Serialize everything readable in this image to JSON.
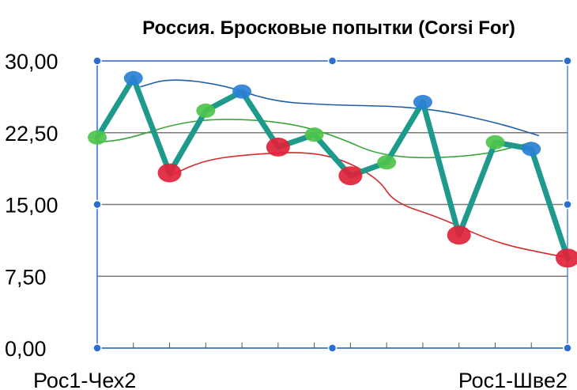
{
  "chart_data": {
    "type": "line",
    "title": "Россия. Бросковые попытки (Corsi For)",
    "xlabel": "",
    "ylabel": "",
    "ylim": [
      0,
      30
    ],
    "y_ticks": [
      "0,00",
      "7,50",
      "15,00",
      "22,50",
      "30,00"
    ],
    "y_tick_values": [
      0,
      7.5,
      15,
      22.5,
      30
    ],
    "x_labels_shown": [
      "Рос1-Чех2",
      "Рос1-Шве2"
    ],
    "grid": "horizontal",
    "legend": "none",
    "colors": {
      "main_line": "#1e9a8c",
      "point_green": "#4cc44c",
      "point_blue": "#2a7fd6",
      "point_red": "#e0223a",
      "trend_blue": "#1f5fa8",
      "trend_green": "#3aa63a",
      "trend_red": "#d42a2a",
      "handle": "#2a6fd0"
    },
    "series": [
      {
        "values": [
          22,
          28.2,
          18.3,
          24.8,
          26.8,
          21,
          22.3,
          18,
          19.4,
          25.7,
          11.8,
          21.5,
          20.8,
          9.4
        ],
        "point_colors": [
          "green",
          "blue",
          "red",
          "green",
          "blue",
          "red",
          "green",
          "red",
          "green",
          "blue",
          "red",
          "green",
          "blue",
          "red"
        ]
      }
    ],
    "annotations": [
      {
        "type": "trend",
        "color": "blue",
        "points": [
          [
            1.2,
            27.3
          ],
          [
            2,
            28.2
          ],
          [
            3.5,
            27.5
          ],
          [
            4.8,
            25.8
          ],
          [
            6.3,
            25.4
          ],
          [
            9,
            25.2
          ],
          [
            11,
            23.6
          ],
          [
            12.2,
            22.2
          ]
        ]
      },
      {
        "type": "trend",
        "color": "green",
        "points": [
          [
            0,
            21.5
          ],
          [
            0.8,
            21.8
          ],
          [
            2.2,
            23.5
          ],
          [
            3.5,
            24
          ],
          [
            5.2,
            23.6
          ],
          [
            6.5,
            22.3
          ],
          [
            8,
            19.8
          ],
          [
            10.5,
            20
          ],
          [
            12,
            21.5
          ]
        ]
      },
      {
        "type": "trend",
        "color": "red",
        "points": [
          [
            2,
            18
          ],
          [
            3,
            19.7
          ],
          [
            4.4,
            20.3
          ],
          [
            5.8,
            20.5
          ],
          [
            6.8,
            19.7
          ],
          [
            7.8,
            17.6
          ],
          [
            8.2,
            15.2
          ],
          [
            9.5,
            13.6
          ],
          [
            11,
            11
          ],
          [
            12.5,
            9.8
          ],
          [
            13.1,
            9.4
          ]
        ]
      }
    ]
  }
}
